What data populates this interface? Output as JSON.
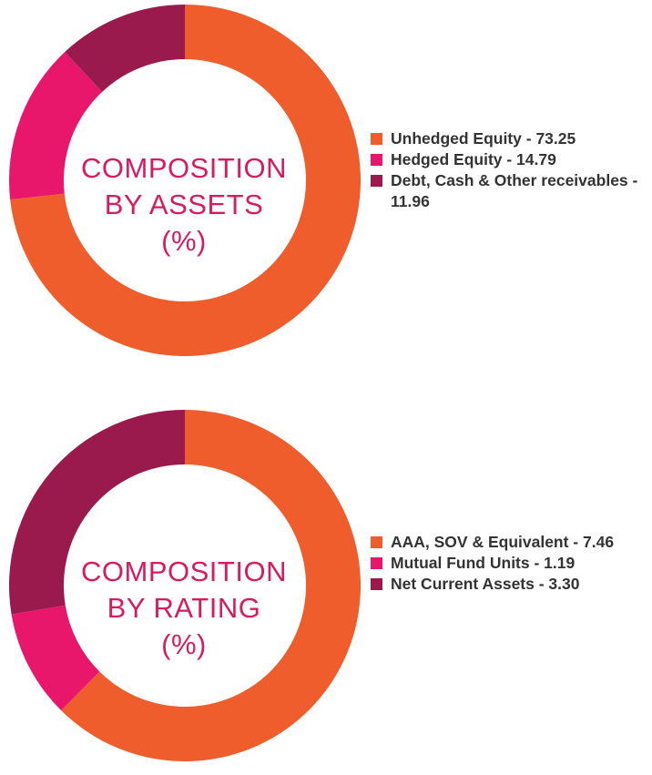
{
  "colors": {
    "orange": "#ee5d2b",
    "pink": "#e8176c",
    "maroon": "#9a1a4e",
    "label": "#d81b60",
    "text": "#333333"
  },
  "chart_data": [
    {
      "type": "pie",
      "title_lines": [
        "COMPOSITION",
        "BY ASSETS",
        "(%)"
      ],
      "legend_position": "right",
      "slices": [
        {
          "label": "Unhedged Equity - 73.25",
          "value": 73.25,
          "color": "#ee5d2b"
        },
        {
          "label": "Hedged Equity - 14.79",
          "value": 14.79,
          "color": "#e8176c"
        },
        {
          "label": "Debt, Cash & Other receivables - 11.96",
          "value": 11.96,
          "color": "#9a1a4e"
        }
      ]
    },
    {
      "type": "pie",
      "title_lines": [
        "COMPOSITION",
        "BY RATING",
        "(%)"
      ],
      "legend_position": "right",
      "slices": [
        {
          "label": "AAA, SOV & Equivalent - 7.46",
          "value": 7.46,
          "color": "#ee5d2b"
        },
        {
          "label": "Mutual Fund Units - 1.19",
          "value": 1.19,
          "color": "#e8176c"
        },
        {
          "label": "Net Current Assets - 3.30",
          "value": 3.3,
          "color": "#9a1a4e"
        }
      ]
    }
  ]
}
